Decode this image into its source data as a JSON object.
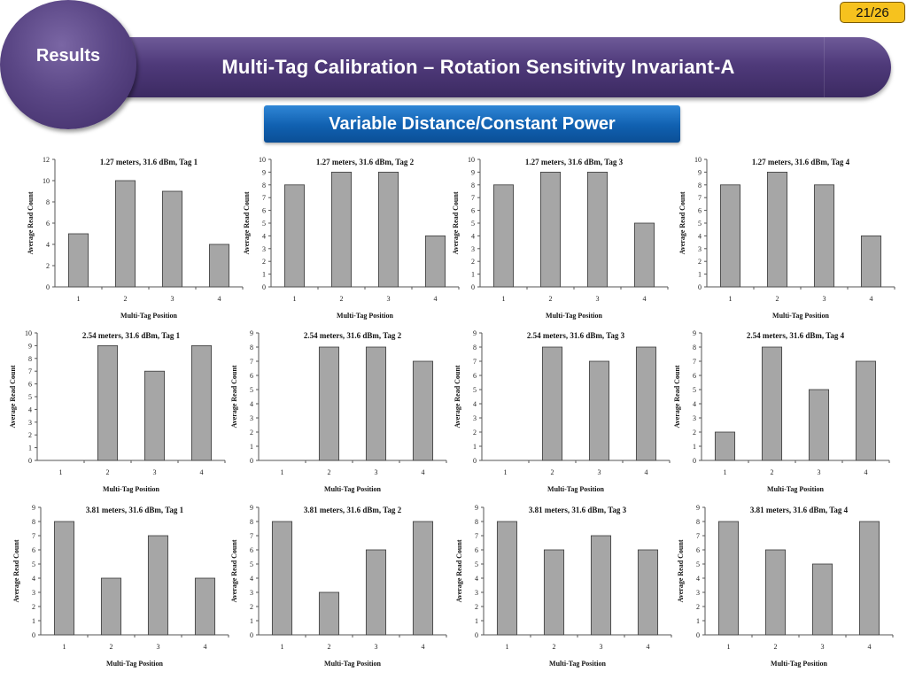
{
  "page_number": "21/26",
  "section": "Results",
  "title": "Multi-Tag Calibration – Rotation Sensitivity Invariant-A",
  "subtitle": "Variable Distance/Constant Power",
  "colors": {
    "bar_fill": "#a6a6a6",
    "bar_stroke": "#3a3a3a",
    "title_bar": "#4f3a7a",
    "subtitle_box": "#1060b0",
    "page_badge": "#f6c21e"
  },
  "chart_data": [
    {
      "type": "bar",
      "title": "1.27 meters, 31.6 dBm, Tag 1",
      "xlabel": "Multi-Tag Position",
      "ylabel": "Average Read Count",
      "categories": [
        "1",
        "2",
        "3",
        "4"
      ],
      "values": [
        5,
        10,
        9,
        4
      ],
      "ylim": [
        0,
        12
      ],
      "yticks": [
        "0",
        "2",
        "4",
        "6",
        "8",
        "10",
        "12"
      ]
    },
    {
      "type": "bar",
      "title": "1.27 meters, 31.6 dBm, Tag 2",
      "xlabel": "Multi-Tag Position",
      "ylabel": "Average Read Count",
      "categories": [
        "1",
        "2",
        "3",
        "4"
      ],
      "values": [
        8,
        9,
        9,
        4
      ],
      "ylim": [
        0,
        10
      ],
      "yticks": [
        "0",
        "1",
        "2",
        "3",
        "4",
        "5",
        "6",
        "7",
        "8",
        "9",
        "10"
      ]
    },
    {
      "type": "bar",
      "title": "1.27 meters, 31.6 dBm, Tag 3",
      "xlabel": "Multi-Tag Position",
      "ylabel": "Average Read Count",
      "categories": [
        "1",
        "2",
        "3",
        "4"
      ],
      "values": [
        8,
        9,
        9,
        5
      ],
      "ylim": [
        0,
        10
      ],
      "yticks": [
        "0",
        "1",
        "2",
        "3",
        "4",
        "5",
        "6",
        "7",
        "8",
        "9",
        "10"
      ]
    },
    {
      "type": "bar",
      "title": "1.27 meters, 31.6 dBm, Tag 4",
      "xlabel": "Multi-Tag Position",
      "ylabel": "Average Read Count",
      "categories": [
        "1",
        "2",
        "3",
        "4"
      ],
      "values": [
        8,
        9,
        8,
        4
      ],
      "ylim": [
        0,
        10
      ],
      "yticks": [
        "0",
        "1",
        "2",
        "3",
        "4",
        "5",
        "6",
        "7",
        "8",
        "9",
        "10"
      ]
    },
    {
      "type": "bar",
      "title": "2.54 meters, 31.6 dBm, Tag 1",
      "xlabel": "Multi-Tag Position",
      "ylabel": "Average Read Count",
      "categories": [
        "1",
        "2",
        "3",
        "4"
      ],
      "values": [
        0,
        9,
        7,
        9
      ],
      "ylim": [
        0,
        10
      ],
      "yticks": [
        "0",
        "1",
        "2",
        "3",
        "4",
        "5",
        "6",
        "7",
        "8",
        "9",
        "10"
      ]
    },
    {
      "type": "bar",
      "title": "2.54 meters, 31.6 dBm, Tag 2",
      "xlabel": "Multi-Tag Position",
      "ylabel": "Average Read Count",
      "categories": [
        "1",
        "2",
        "3",
        "4"
      ],
      "values": [
        0,
        8,
        8,
        7
      ],
      "ylim": [
        0,
        9
      ],
      "yticks": [
        "0",
        "1",
        "2",
        "3",
        "4",
        "5",
        "6",
        "7",
        "8",
        "9"
      ]
    },
    {
      "type": "bar",
      "title": "2.54 meters, 31.6 dBm, Tag 3",
      "xlabel": "Multi-Tag Position",
      "ylabel": "Average Read Count",
      "categories": [
        "1",
        "2",
        "3",
        "4"
      ],
      "values": [
        0,
        8,
        7,
        8
      ],
      "ylim": [
        0,
        9
      ],
      "yticks": [
        "0",
        "1",
        "2",
        "3",
        "4",
        "5",
        "6",
        "7",
        "8",
        "9"
      ]
    },
    {
      "type": "bar",
      "title": "2.54 meters, 31.6 dBm, Tag 4",
      "xlabel": "Multi-Tag Position",
      "ylabel": "Average Read Count",
      "categories": [
        "1",
        "2",
        "3",
        "4"
      ],
      "values": [
        2,
        8,
        5,
        7
      ],
      "ylim": [
        0,
        9
      ],
      "yticks": [
        "0",
        "1",
        "2",
        "3",
        "4",
        "5",
        "6",
        "7",
        "8",
        "9"
      ]
    },
    {
      "type": "bar",
      "title": "3.81 meters, 31.6 dBm, Tag 1",
      "xlabel": "Multi-Tag Position",
      "ylabel": "Average Read Count",
      "categories": [
        "1",
        "2",
        "3",
        "4"
      ],
      "values": [
        8,
        4,
        7,
        4
      ],
      "ylim": [
        0,
        9
      ],
      "yticks": [
        "0",
        "1",
        "2",
        "3",
        "4",
        "5",
        "6",
        "7",
        "8",
        "9"
      ]
    },
    {
      "type": "bar",
      "title": "3.81 meters, 31.6 dBm, Tag 2",
      "xlabel": "Multi-Tag Position",
      "ylabel": "Average Read Count",
      "categories": [
        "1",
        "2",
        "3",
        "4"
      ],
      "values": [
        8,
        3,
        6,
        8
      ],
      "ylim": [
        0,
        9
      ],
      "yticks": [
        "0",
        "1",
        "2",
        "3",
        "4",
        "5",
        "6",
        "7",
        "8",
        "9"
      ]
    },
    {
      "type": "bar",
      "title": "3.81 meters, 31.6 dBm, Tag 3",
      "xlabel": "Multi-Tag Position",
      "ylabel": "Average Read Count",
      "categories": [
        "1",
        "2",
        "3",
        "4"
      ],
      "values": [
        8,
        6,
        7,
        6
      ],
      "ylim": [
        0,
        9
      ],
      "yticks": [
        "0",
        "1",
        "2",
        "3",
        "4",
        "5",
        "6",
        "7",
        "8",
        "9"
      ]
    },
    {
      "type": "bar",
      "title": "3.81 meters, 31.6 dBm, Tag 4",
      "xlabel": "Multi-Tag Position",
      "ylabel": "Average Read Count",
      "categories": [
        "1",
        "2",
        "3",
        "4"
      ],
      "values": [
        8,
        6,
        5,
        8
      ],
      "ylim": [
        0,
        9
      ],
      "yticks": [
        "0",
        "1",
        "2",
        "3",
        "4",
        "5",
        "6",
        "7",
        "8",
        "9"
      ]
    }
  ]
}
